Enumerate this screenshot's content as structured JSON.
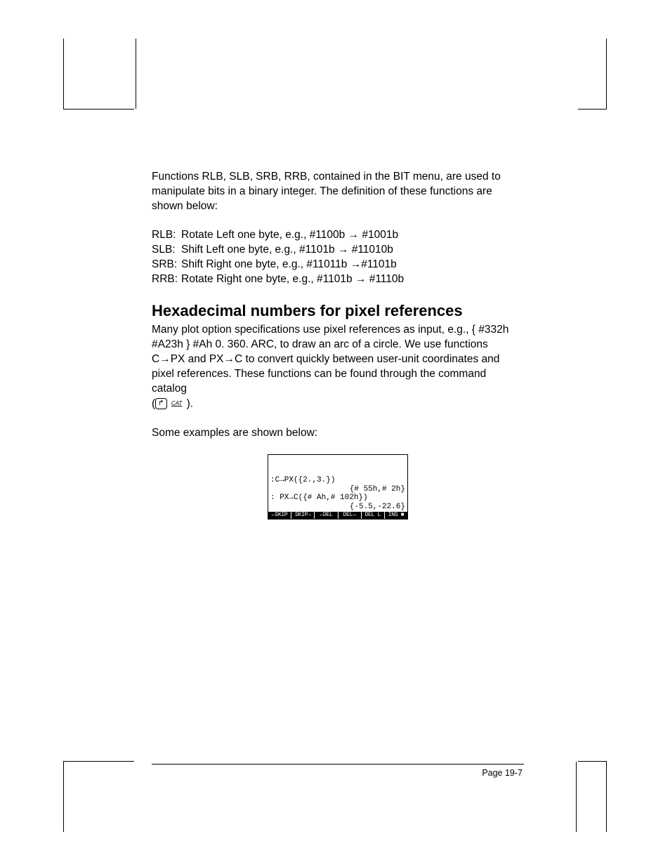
{
  "intro_para": "Functions RLB, SLB, SRB, RRB, contained in the BIT menu, are used to manipulate bits in a binary integer.  The definition of these functions are shown below:",
  "defs": [
    {
      "label": "RLB:",
      "text": "Rotate Left one byte, e.g., #1100b → #1001b"
    },
    {
      "label": "SLB:",
      "text": "Shift Left one byte, e.g., #1101b → #11010b"
    },
    {
      "label": "SRB:",
      "text": "Shift Right one byte, e.g., #11011b →#1101b"
    },
    {
      "label": "RRB:",
      "text": "Rotate Right one byte, e.g., #1101b → #1110b"
    }
  ],
  "heading": "Hexadecimal numbers for pixel references",
  "body_para_1a": "Many plot option specifications use pixel references as input, e.g., { #332h #A23h } #Ah 0. 360. ARC, to draw an arc of a circle.   We use functions C→PX and PX→C to convert quickly between user-unit coordinates and pixel references.  These functions can be found through the command catalog",
  "body_para_1b": "(",
  "body_para_1c": " ).",
  "key_shift_glyph": "↱",
  "key_cat_label": "CAT",
  "examples_para": "Some examples are shown below:",
  "calc": {
    "lines": [
      ":C→PX({2.,3.})",
      "              {# 55h,# 2h}",
      ": PX→C({# Ah,# 102h}) ",
      "            {-5.5,-22.6}"
    ],
    "menu": [
      "←SKIP",
      "SKIP→",
      "←DEL",
      "DEL→",
      "DEL L",
      "INS ■"
    ]
  },
  "page_label": "Page 19-7"
}
